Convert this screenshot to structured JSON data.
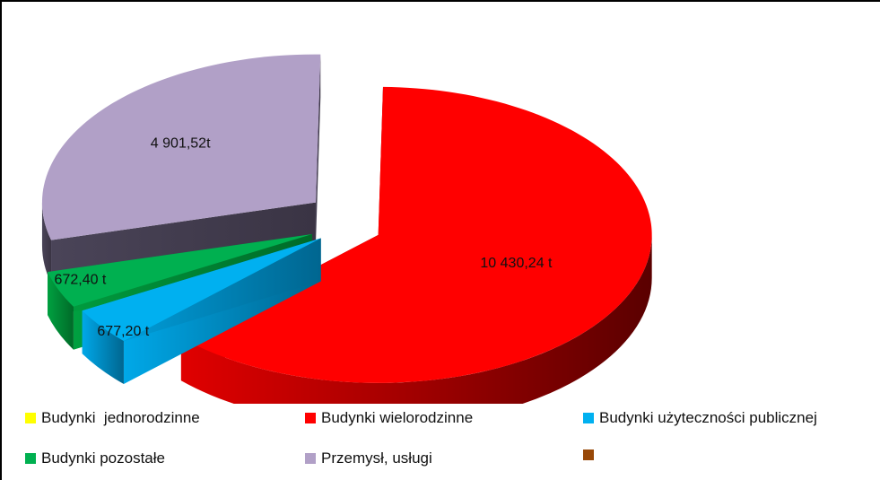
{
  "chart_data": {
    "type": "pie",
    "title": "",
    "labels": [
      "Budynki  jednorodzinne",
      "Budynki wielorodzinne",
      "Budynki użyteczności publicznej",
      "Budynki pozostałe",
      "Przemysł, usługi",
      ""
    ],
    "values": [
      0,
      10430.24,
      677.2,
      672.4,
      4901.52,
      0
    ],
    "data_labels": [
      "",
      "10 430,24   t",
      "677,20  t",
      "672,40 t",
      "4 901,52t",
      ""
    ],
    "colors": [
      "#FFFF00",
      "#FF0000",
      "#00B0F0",
      "#00B050",
      "#B1A0C7",
      "#984807"
    ],
    "legend_position": "bottom",
    "style": "3d-exploded"
  }
}
